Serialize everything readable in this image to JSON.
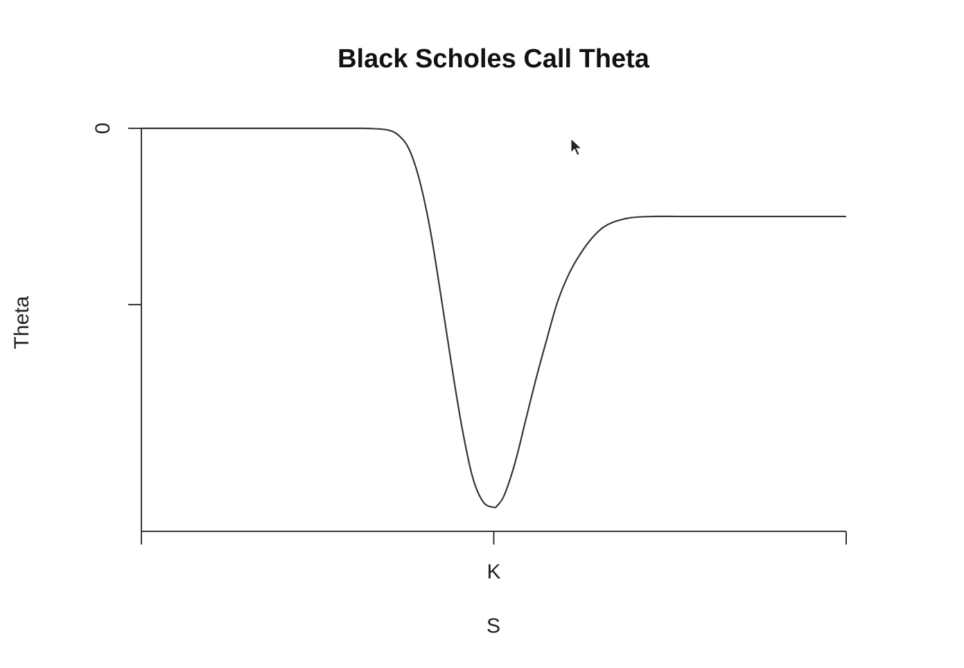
{
  "chart_data": {
    "type": "line",
    "title": "Black Scholes Call Theta",
    "xlabel": "S",
    "ylabel": "Theta",
    "x_ticks": [
      {
        "value": 0,
        "label": ""
      },
      {
        "value": 1,
        "label": "K"
      },
      {
        "value": 2,
        "label": ""
      }
    ],
    "y_ticks": [
      {
        "value": 0,
        "label": "0"
      },
      {
        "value": -1,
        "label": ""
      }
    ],
    "xlim": [
      0,
      2
    ],
    "ylim": [
      -2.2,
      0
    ],
    "grid": false,
    "series": [
      {
        "x": [
          0.0,
          0.2,
          0.4,
          0.6,
          0.65,
          0.7,
          0.73,
          0.76,
          0.79,
          0.82,
          0.85,
          0.88,
          0.91,
          0.94,
          0.97,
          1.0,
          1.01,
          1.03,
          1.06,
          1.09,
          1.12,
          1.15,
          1.18,
          1.21,
          1.24,
          1.28,
          1.32,
          1.38,
          1.45,
          1.55,
          1.7,
          1.85,
          2.0
        ],
        "y": [
          0.0,
          0.0,
          0.0,
          0.0,
          -0.001,
          -0.01,
          -0.04,
          -0.12,
          -0.3,
          -0.58,
          -0.95,
          -1.34,
          -1.7,
          -1.98,
          -2.12,
          -2.15,
          -2.14,
          -2.08,
          -1.9,
          -1.66,
          -1.42,
          -1.2,
          -0.99,
          -0.84,
          -0.73,
          -0.62,
          -0.55,
          -0.51,
          -0.5,
          -0.5,
          -0.5,
          -0.5,
          -0.5
        ]
      }
    ]
  },
  "ui": {
    "cursor_icon": "arrow-cursor-icon"
  }
}
